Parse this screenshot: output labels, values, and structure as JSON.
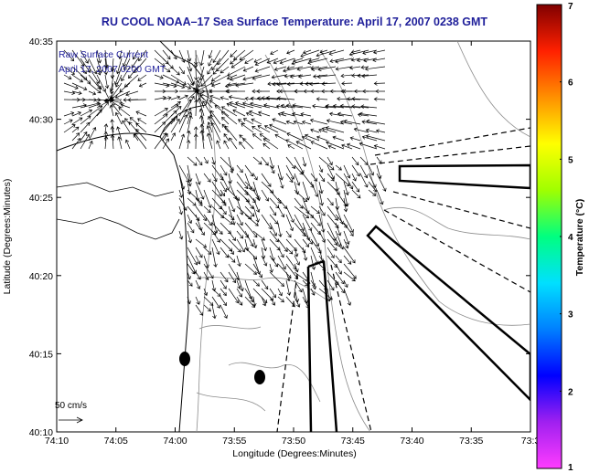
{
  "chart_data": {
    "type": "vector-field map",
    "title": "RU COOL  NOAA–17  Sea Surface Temperature:  April 17, 2007 0238 GMT",
    "xlabel": "Longitude (Degrees:Minutes)",
    "ylabel": "Latitude (Degrees:Minutes)",
    "x_ticks": [
      "74:10",
      "74:05",
      "74:00",
      "73:55",
      "73:50",
      "73:45",
      "73:40",
      "73:35",
      "73:3"
    ],
    "y_ticks": [
      "40:35",
      "40:30",
      "40:25",
      "40:20",
      "40:15",
      "40:10"
    ],
    "legend_lines": [
      "Raw Surface Current",
      "April 17, 2007 0200 GMT"
    ],
    "scale_arrow_label": "50 cm/s",
    "colorbar": {
      "label": "Temperature (°C)",
      "ticks": [
        "1",
        "2",
        "3",
        "4",
        "5",
        "6",
        "7"
      ],
      "colors": [
        "#ff3cff",
        "#a020f0",
        "#0000ff",
        "#0080ff",
        "#00e0ff",
        "#00ff80",
        "#a0ff00",
        "#ffff00",
        "#ff9000",
        "#ff2000",
        "#800000"
      ]
    },
    "grid": false
  }
}
